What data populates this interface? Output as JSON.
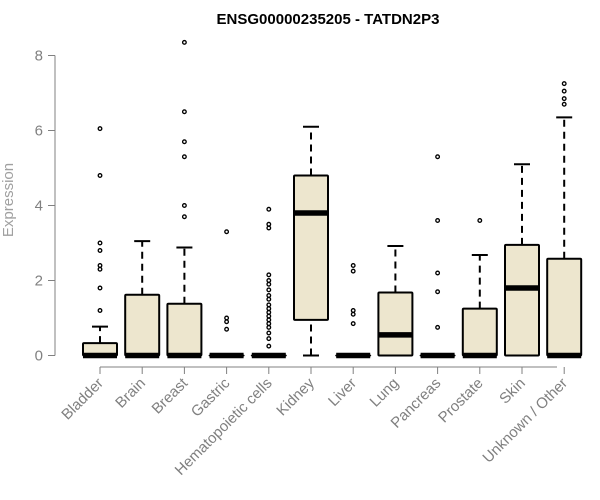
{
  "chart_data": {
    "type": "box",
    "title": "ENSG00000235205 - TATDN2P3",
    "xlabel": "",
    "ylabel": "Expression",
    "ylim": [
      0,
      8.3
    ],
    "yticks": [
      0,
      2,
      4,
      6,
      8
    ],
    "box_fill": "#ede6ce",
    "categories": [
      "Bladder",
      "Brain",
      "Breast",
      "Gastric",
      "Hematopoietic cells",
      "Kidney",
      "Liver",
      "Lung",
      "Pancreas",
      "Prostate",
      "Skin",
      "Unknown / Other"
    ],
    "boxes": [
      {
        "min": 0,
        "q1": 0,
        "median": 0,
        "q3": 0.33,
        "max": 0.77,
        "outliers": [
          1.2,
          1.8,
          2.3,
          2.4,
          2.8,
          3.0,
          4.8,
          6.05
        ]
      },
      {
        "min": 0,
        "q1": 0,
        "median": 0,
        "q3": 1.62,
        "max": 3.05,
        "outliers": []
      },
      {
        "min": 0,
        "q1": 0,
        "median": 0,
        "q3": 1.38,
        "max": 2.88,
        "outliers": [
          3.7,
          4.0,
          5.3,
          5.7,
          6.5,
          8.35
        ]
      },
      {
        "min": 0,
        "q1": 0,
        "median": 0,
        "q3": 0,
        "max": 0,
        "outliers": [
          0.7,
          0.9,
          1.0,
          3.3
        ]
      },
      {
        "min": 0,
        "q1": 0,
        "median": 0,
        "q3": 0,
        "max": 0,
        "outliers": [
          0.25,
          0.45,
          0.6,
          0.75,
          0.85,
          0.95,
          1.05,
          1.15,
          1.25,
          1.35,
          1.5,
          1.6,
          1.75,
          1.9,
          2.0,
          2.15,
          3.4,
          3.5,
          3.9
        ]
      },
      {
        "min": 0,
        "q1": 0.95,
        "median": 3.8,
        "q3": 4.8,
        "max": 6.1,
        "outliers": []
      },
      {
        "min": 0,
        "q1": 0,
        "median": 0,
        "q3": 0,
        "max": 0,
        "outliers": [
          0.85,
          1.1,
          1.2,
          2.25,
          2.4
        ]
      },
      {
        "min": 0,
        "q1": 0,
        "median": 0.55,
        "q3": 1.68,
        "max": 2.92,
        "outliers": []
      },
      {
        "min": 0,
        "q1": 0,
        "median": 0,
        "q3": 0,
        "max": 0,
        "outliers": [
          0.75,
          1.7,
          2.2,
          3.6,
          5.3
        ]
      },
      {
        "min": 0,
        "q1": 0,
        "median": 0,
        "q3": 1.25,
        "max": 2.68,
        "outliers": [
          3.6
        ]
      },
      {
        "min": 0,
        "q1": 0,
        "median": 1.8,
        "q3": 2.95,
        "max": 5.1,
        "outliers": []
      },
      {
        "min": 0,
        "q1": 0,
        "median": 0,
        "q3": 2.58,
        "max": 6.35,
        "outliers": [
          6.7,
          6.85,
          7.05,
          7.25
        ]
      }
    ]
  }
}
